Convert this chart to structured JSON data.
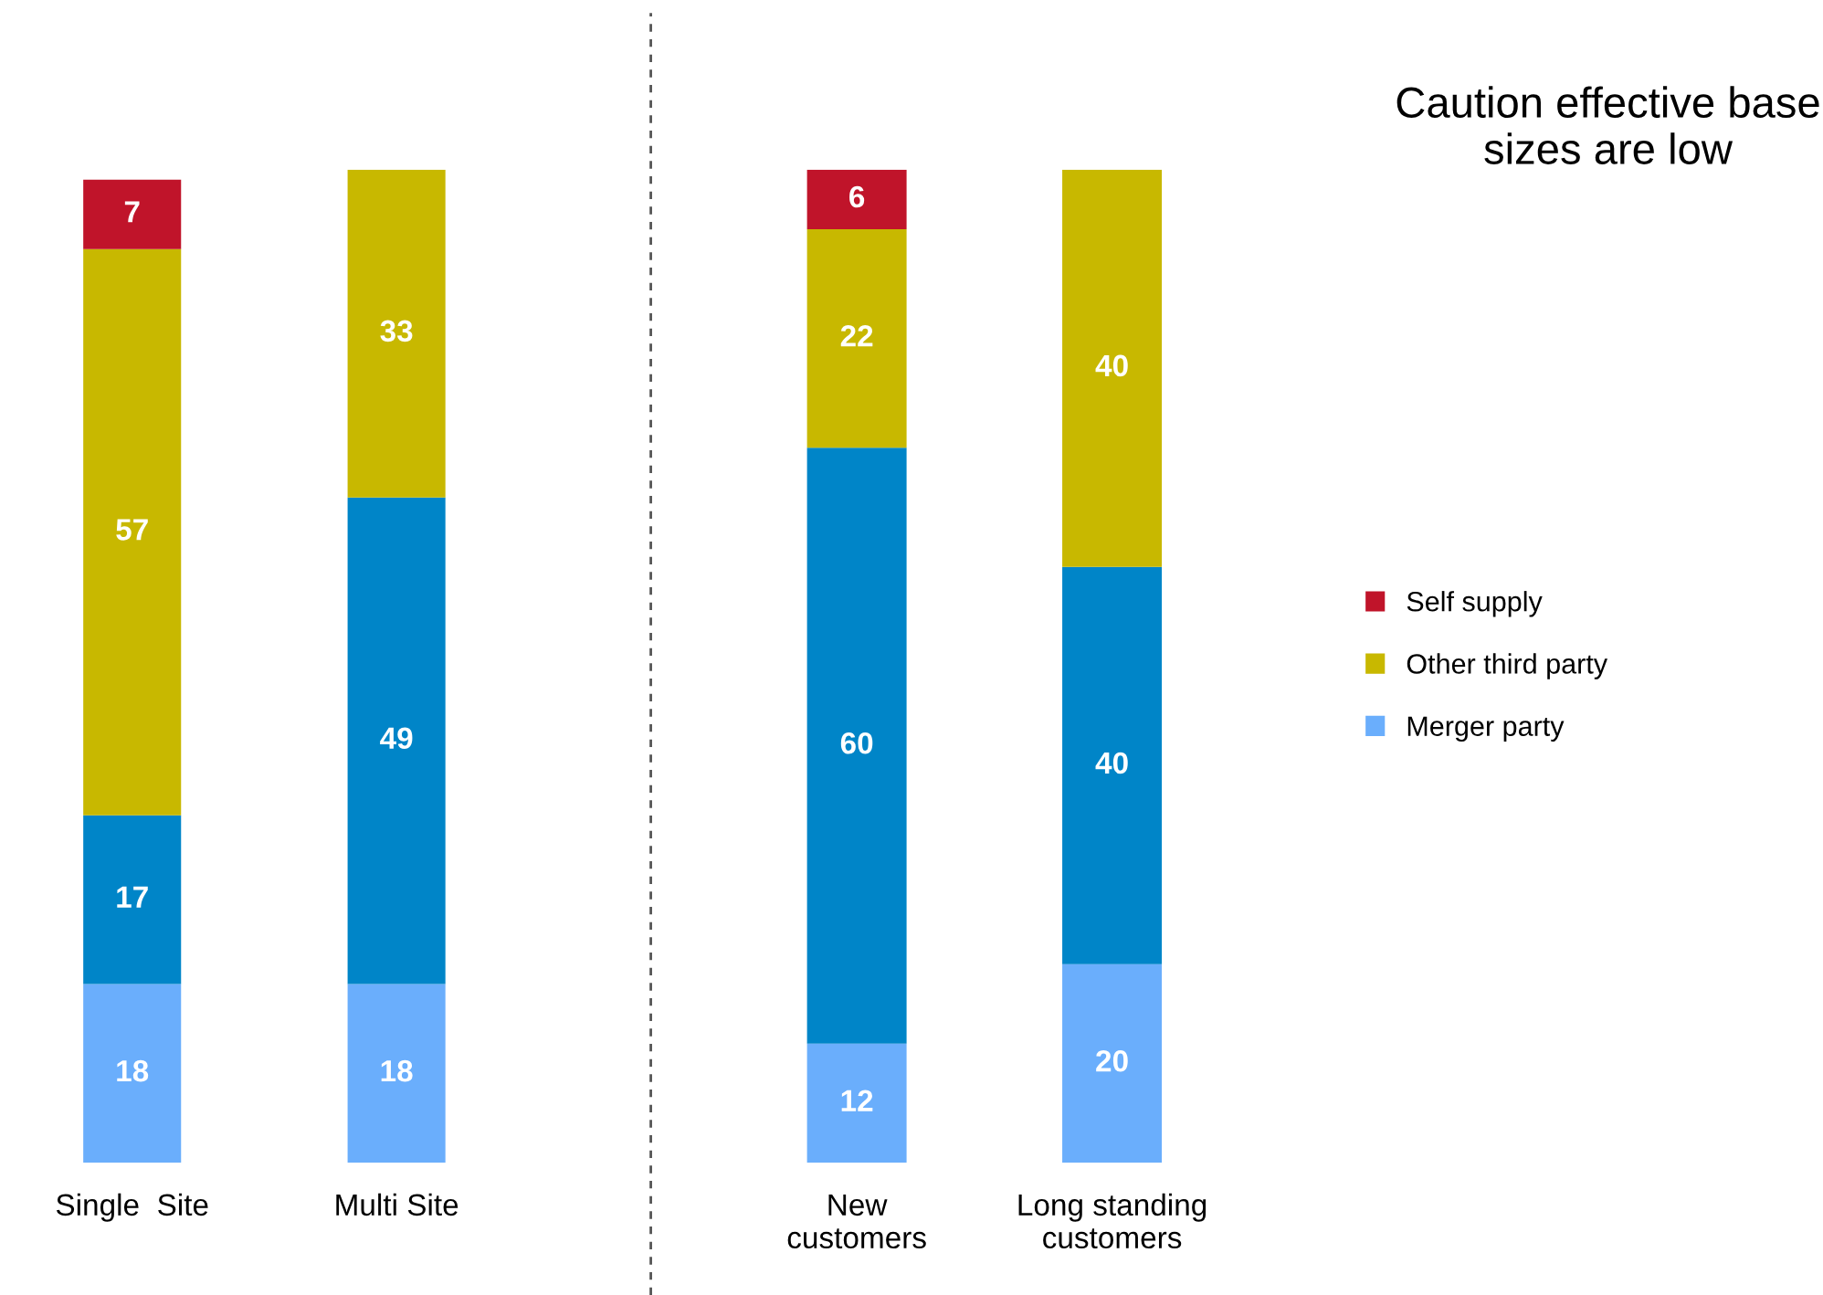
{
  "chart_data": [
    {
      "type": "bar",
      "stacked": true,
      "data_labels": true,
      "categories": [
        "Single  Site",
        "Multi Site"
      ],
      "ylim": [
        0,
        100
      ],
      "tick_labels": "x",
      "grid": false,
      "legend": false,
      "series": [
        {
          "color": "#6aaefc",
          "values": [
            18,
            18
          ]
        },
        {
          "color": "#0085c8",
          "values": [
            17,
            49
          ]
        },
        {
          "color": "#c8b800",
          "values": [
            57,
            33
          ]
        },
        {
          "color": "#c0142a",
          "values": [
            7,
            null
          ]
        }
      ]
    },
    {
      "type": "bar",
      "stacked": true,
      "data_labels": true,
      "categories": [
        "New\ncustomers",
        "Long standing\ncustomers"
      ],
      "ylim": [
        0,
        100
      ],
      "tick_labels": "x",
      "grid": false,
      "legend": "right",
      "annotations": [
        "Caution effective base sizes are low"
      ],
      "series": [
        {
          "name": "Merger party",
          "color": "#6aaefc",
          "values": [
            12,
            20
          ]
        },
        {
          "color": "#0085c8",
          "values": [
            60,
            40
          ]
        },
        {
          "name": "Other third party",
          "color": "#c8b800",
          "values": [
            22,
            40
          ]
        },
        {
          "name": "Self supply",
          "color": "#c0142a",
          "values": [
            6,
            null
          ]
        }
      ]
    }
  ]
}
